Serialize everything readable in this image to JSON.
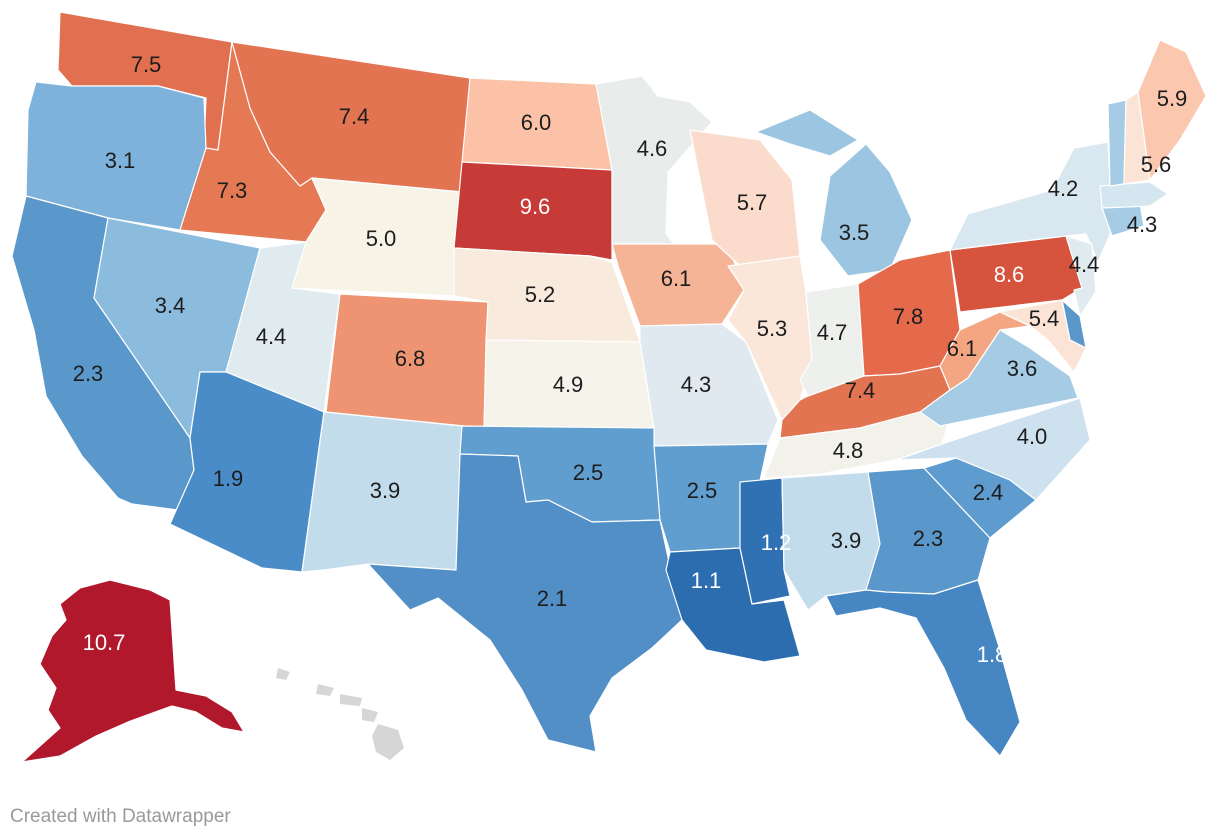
{
  "map": {
    "legend_note": "",
    "color_scale": {
      "low": "#2166ac",
      "mid": "#f7f4ea",
      "high": "#b2182b"
    },
    "states": [
      {
        "abbr": "WA",
        "value": "7.5",
        "color": "#e0704f"
      },
      {
        "abbr": "OR",
        "value": "3.1",
        "color": "#7fb2da"
      },
      {
        "abbr": "CA",
        "value": "2.3",
        "color": "#5a98cc"
      },
      {
        "abbr": "ID",
        "value": "7.3",
        "color": "#e47954"
      },
      {
        "abbr": "NV",
        "value": "3.4",
        "color": "#8cbcdd"
      },
      {
        "abbr": "MT",
        "value": "7.4",
        "color": "#e27452"
      },
      {
        "abbr": "WY",
        "value": "5.0",
        "color": "#f7f3e6"
      },
      {
        "abbr": "UT",
        "value": "4.4",
        "color": "#e0ebf0"
      },
      {
        "abbr": "AZ",
        "value": "1.9",
        "color": "#4a8cc7"
      },
      {
        "abbr": "CO",
        "value": "6.8",
        "color": "#ee9472"
      },
      {
        "abbr": "NM",
        "value": "3.9",
        "color": "#c3dcec"
      },
      {
        "abbr": "ND",
        "value": "6.0",
        "color": "#fbc2a7"
      },
      {
        "abbr": "SD",
        "value": "9.6",
        "color": "#c63a37"
      },
      {
        "abbr": "NE",
        "value": "5.2",
        "color": "#f8ebdd"
      },
      {
        "abbr": "KS",
        "value": "4.9",
        "color": "#f6f3ea"
      },
      {
        "abbr": "OK",
        "value": "2.5",
        "color": "#619ed0"
      },
      {
        "abbr": "TX",
        "value": "2.1",
        "color": "#528fc6"
      },
      {
        "abbr": "MN",
        "value": "4.6",
        "color": "#e8ecea"
      },
      {
        "abbr": "IA",
        "value": "6.1",
        "color": "#f6b497"
      },
      {
        "abbr": "MO",
        "value": "4.3",
        "color": "#dfe9ef"
      },
      {
        "abbr": "AR",
        "value": "2.5",
        "color": "#619ed0"
      },
      {
        "abbr": "LA",
        "value": "1.1",
        "color": "#2b6daf"
      },
      {
        "abbr": "WI",
        "value": "5.7",
        "color": "#fbdccc"
      },
      {
        "abbr": "IL",
        "value": "5.3",
        "color": "#fbe7da"
      },
      {
        "abbr": "MI",
        "value": "3.5",
        "color": "#9bc5e1"
      },
      {
        "abbr": "IN",
        "value": "4.7",
        "color": "#eef0ed"
      },
      {
        "abbr": "OH",
        "value": "7.8",
        "color": "#e56a4b"
      },
      {
        "abbr": "KY",
        "value": "7.4",
        "color": "#e27452"
      },
      {
        "abbr": "TN",
        "value": "4.8",
        "color": "#f2f1ea"
      },
      {
        "abbr": "MS",
        "value": "1.2",
        "color": "#2f71b2"
      },
      {
        "abbr": "AL",
        "value": "3.9",
        "color": "#c3dcec"
      },
      {
        "abbr": "GA",
        "value": "2.3",
        "color": "#5a98cc"
      },
      {
        "abbr": "FL",
        "value": "1.8",
        "color": "#4686c3"
      },
      {
        "abbr": "SC",
        "value": "2.4",
        "color": "#5e9bce"
      },
      {
        "abbr": "NC",
        "value": "4.0",
        "color": "#cde2ee"
      },
      {
        "abbr": "VA",
        "value": "3.6",
        "color": "#a6cbe4"
      },
      {
        "abbr": "WV",
        "value": "6.1",
        "color": "#f4a582"
      },
      {
        "abbr": "PA",
        "value": "8.6",
        "color": "#d6533e"
      },
      {
        "abbr": "NY",
        "value": "4.2",
        "color": "#d8e7f0"
      },
      {
        "abbr": "NJ",
        "value": "4.4",
        "color": "#e0ebf0"
      },
      {
        "abbr": "DE",
        "value": "",
        "color": "#5a98cc"
      },
      {
        "abbr": "MD",
        "value": "5.4",
        "color": "#fbe3d5"
      },
      {
        "abbr": "CT",
        "value": "4.3",
        "color": "#a6cbe4"
      },
      {
        "abbr": "MA",
        "value": "",
        "color": "#d5e6f0"
      },
      {
        "abbr": "VT",
        "value": "",
        "color": "#a6cbe4"
      },
      {
        "abbr": "NH",
        "value": "5.6",
        "color": "#fbe3d5"
      },
      {
        "abbr": "ME",
        "value": "5.9",
        "color": "#fbc7ae"
      },
      {
        "abbr": "AK",
        "value": "10.7",
        "color": "#b2182b"
      },
      {
        "abbr": "HI",
        "value": "",
        "color": "#d6d6d6"
      }
    ]
  },
  "footer": {
    "credit": "Created with Datawrapper"
  }
}
